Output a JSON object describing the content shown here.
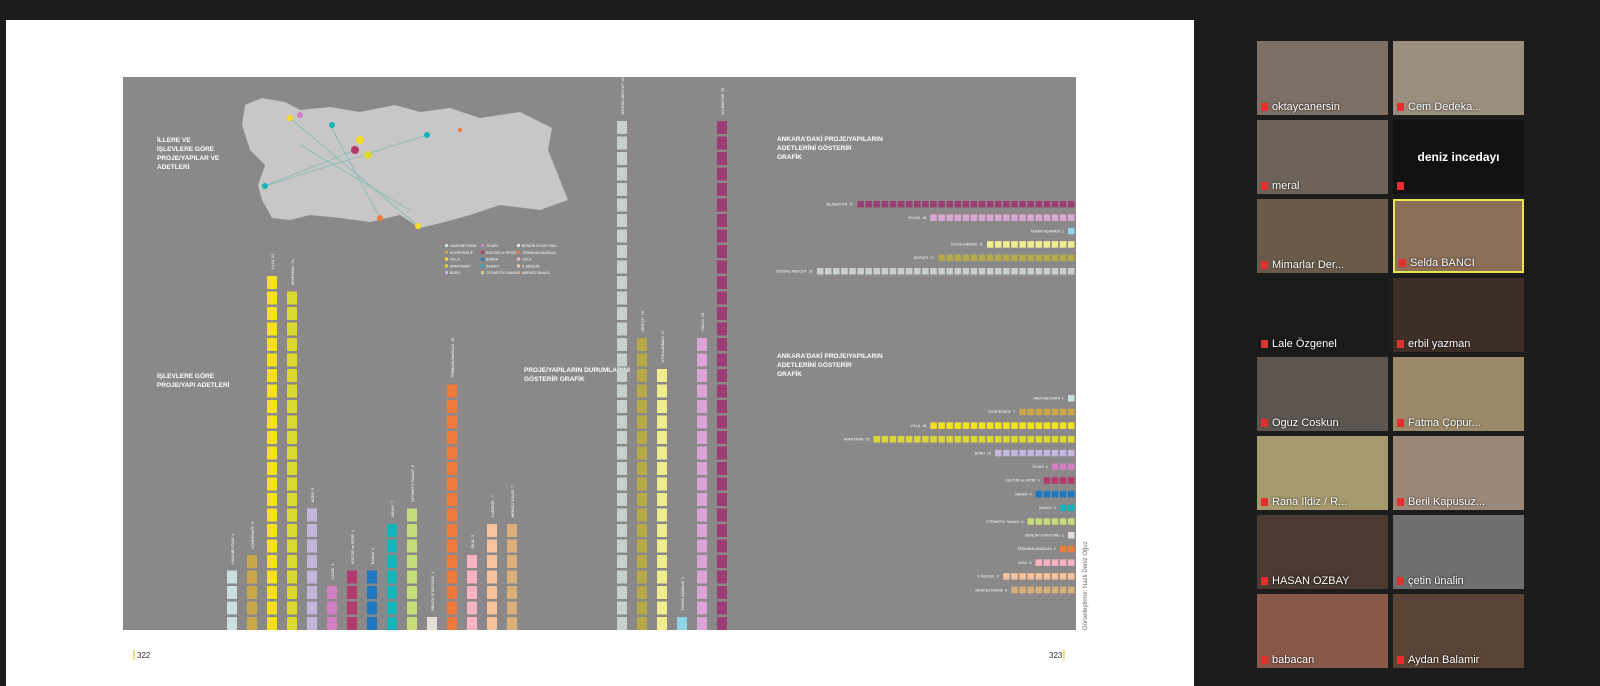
{
  "document": {
    "pages": [
      "322",
      "323"
    ],
    "credit": "Görselleştirme: Nazlı Deniz Oğuz",
    "map_title": "İLLERE VE İŞLEVLERE GÖRE PROJE/YAPILAR VE ADETLERİ",
    "functions": {
      "title": "İŞLEVLERE GÖRE PROJE/YAPI ADETLERİ",
      "categories": [
        "HAVA MEYDANI",
        "KOOPERATİF",
        "VİLLA",
        "APARTMAN",
        "BÜRO",
        "TİCARİ",
        "KÜLTÜR ve SPOR",
        "BANKA",
        "SANAYİ",
        "OTOMOTİV SANAYİ",
        "BENZİN İSTASYONU",
        "TERMİNAL/MAĞAZA",
        "OKUL",
        "İL MÜDÜR.",
        "MERKEZ BİNASI"
      ],
      "values": [
        4,
        5,
        23,
        22,
        8,
        3,
        4,
        4,
        7,
        8,
        1,
        16,
        5,
        7,
        7
      ],
      "colors": [
        "#c9dfe0",
        "#c9a84a",
        "#f5e020",
        "#d9d932",
        "#c6b6dd",
        "#d27fc4",
        "#b23a6e",
        "#1f78c0",
        "#13b3b8",
        "#c7dd7a",
        "#e3dfd9",
        "#f07a3a",
        "#f8b2c0",
        "#f7c39b",
        "#d9b07a"
      ]
    },
    "status": {
      "title": "PROJE/YAPILARIN DURUMLARINI GÖSTERİR GRAFİK",
      "categories": [
        "ÖZGÜNL MEVCUT",
        "DEĞİŞTİ",
        "UYGULANMADI",
        "TASARI AŞAMASI",
        "YIKILDI",
        "BİLİNMİYOR"
      ],
      "values": [
        33,
        19,
        17,
        1,
        19,
        33
      ],
      "colors": [
        "#c8cfcc",
        "#b5aa45",
        "#f0ee8f",
        "#8fd4ea",
        "#d9a6d6",
        "#9c3c74"
      ]
    },
    "ankara_status": {
      "title": "ANKARA'DAKİ PROJE/YAPILARIN ADETLERİNİ GÖSTERİR GRAFİK",
      "values": [
        32,
        17,
        11,
        1,
        18,
        27
      ]
    },
    "ankara_functions": {
      "title": "ANKARA'DAKİ PROJE/YAPILARIN ADETLERİNİ GÖSTERİR GRAFİK",
      "values": [
        1,
        7,
        18,
        25,
        10,
        3,
        4,
        5,
        2,
        6,
        1,
        2,
        5,
        9,
        8
      ]
    }
  },
  "meeting": {
    "participants": [
      {
        "name": "oktaycanersin"
      },
      {
        "name": "Cem Dedeka..."
      },
      {
        "name": "meral"
      },
      {
        "name": "deniz incedayı",
        "video": false
      },
      {
        "name": "Mimarlar Der..."
      },
      {
        "name": "Selda BANCI",
        "active": true
      },
      {
        "name": "Lale Özgenel"
      },
      {
        "name": "erbil yazman"
      },
      {
        "name": "Oguz Coskun"
      },
      {
        "name": "Fatma Çopur..."
      },
      {
        "name": "Rana Ildiz / R..."
      },
      {
        "name": "Beril Kapusuz..."
      },
      {
        "name": "HASAN OZBAY"
      },
      {
        "name": "çetin ünalin"
      },
      {
        "name": "babacan"
      },
      {
        "name": "Aydan Balamir"
      }
    ]
  }
}
